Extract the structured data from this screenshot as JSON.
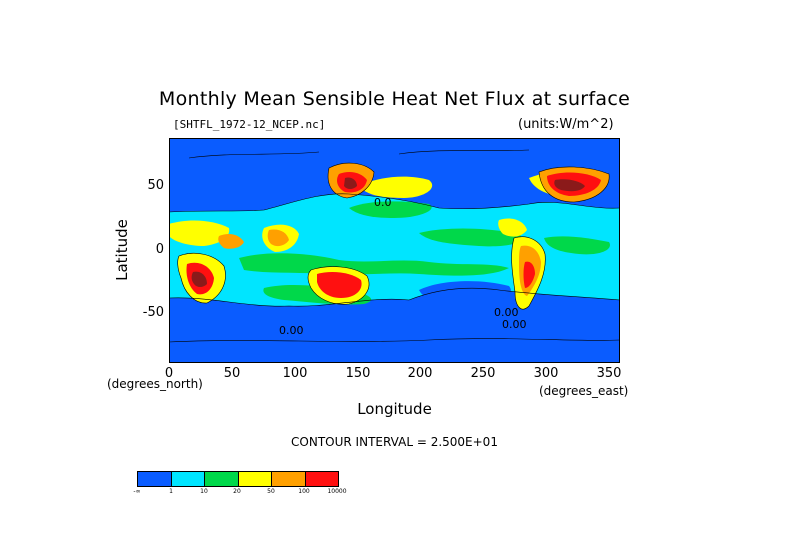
{
  "title": "Monthly Mean Sensible Heat Net Flux at surface",
  "subtitle": {
    "file": "[SHTFL_1972-12_NCEP.nc]",
    "units": "(units:W/m^2)"
  },
  "axes": {
    "xlabel": "Longitude",
    "ylabel": "Latitude",
    "x_unit": "(degrees_east)",
    "y_unit": "(degrees_north)",
    "xticks": [
      "0",
      "50",
      "100",
      "150",
      "200",
      "250",
      "300",
      "350"
    ],
    "yticks": [
      "50",
      "0",
      "-50"
    ],
    "xlim": [
      0,
      360
    ],
    "ylim": [
      -90,
      90
    ]
  },
  "contour_interval": "CONTOUR INTERVAL = 2.500E+01",
  "contour_labels": [
    "0.0",
    "0.00",
    "0.00",
    "0.00"
  ],
  "colorbar": {
    "colors": [
      "#0a5cff",
      "#00e5ff",
      "#00d84a",
      "#ffff00",
      "#ffa000",
      "#ff1010"
    ],
    "labels": [
      "-∞",
      "1",
      "10",
      "20",
      "50",
      "100",
      "10000"
    ]
  },
  "map_colors": {
    "deep_blue": "#0a5cff",
    "cyan": "#00e5ff",
    "green": "#00d84a",
    "yellow": "#ffff00",
    "orange": "#ffa000",
    "red": "#ff1010",
    "dark_red": "#8b1a1a"
  }
}
